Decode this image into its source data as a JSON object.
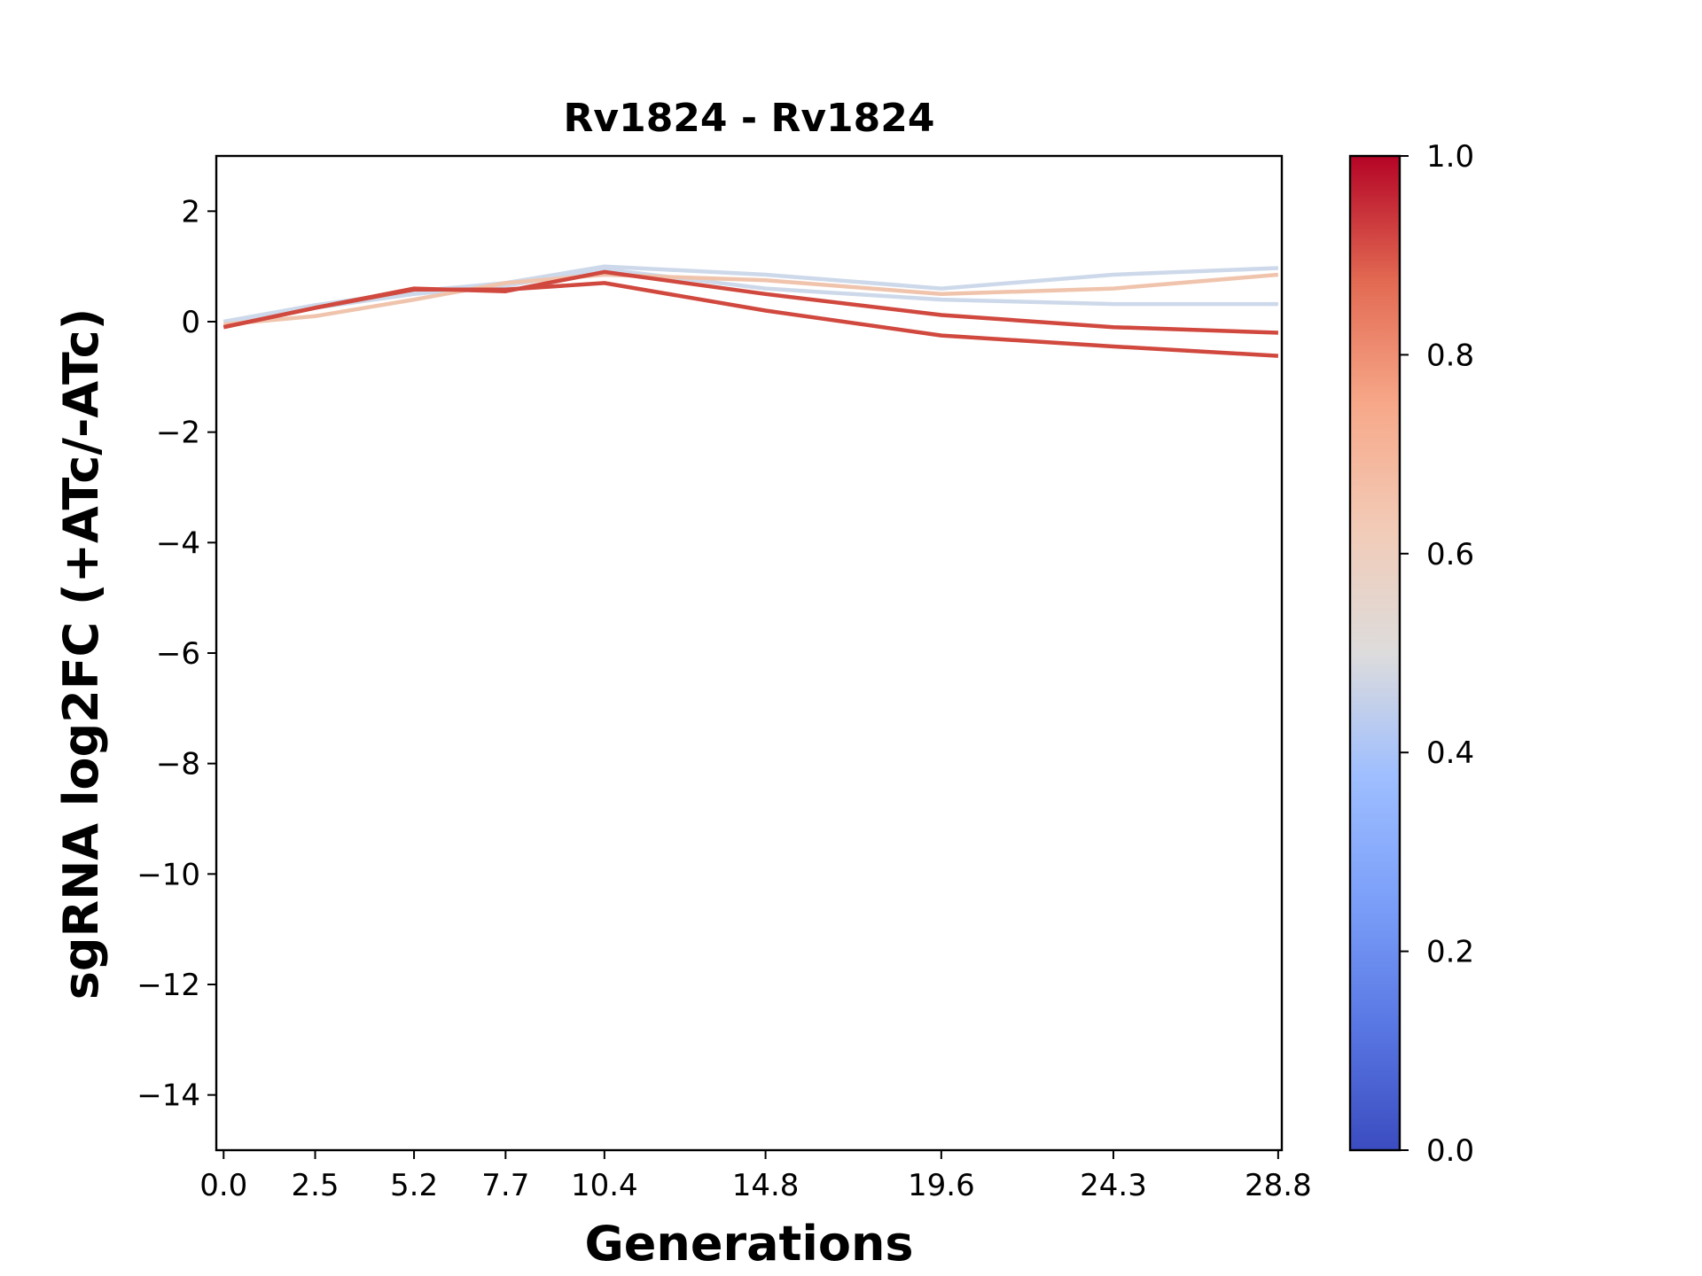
{
  "chart_data": {
    "type": "line",
    "title": "Rv1824 - Rv1824",
    "xlabel": "Generations",
    "ylabel": "sgRNA log2FC (+ATc/-ATc)",
    "x": [
      0.0,
      2.5,
      5.2,
      7.7,
      10.4,
      14.8,
      19.6,
      24.3,
      28.8
    ],
    "x_ticks": [
      "0.0",
      "2.5",
      "5.2",
      "7.7",
      "10.4",
      "14.8",
      "19.6",
      "24.3",
      "28.8"
    ],
    "xlim": [
      -0.2,
      28.9
    ],
    "ylim": [
      -15,
      3
    ],
    "y_ticks": [
      2,
      0,
      -2,
      -4,
      -6,
      -8,
      -10,
      -12,
      -14
    ],
    "y_tick_labels": [
      "2",
      "0",
      "−2",
      "−4",
      "−6",
      "−8",
      "−10",
      "−12",
      "−14"
    ],
    "colormap": "coolwarm",
    "colorbar": {
      "range": [
        0.0,
        1.0
      ],
      "ticks": [
        "1.0",
        "0.8",
        "0.6",
        "0.4",
        "0.2",
        "0.0"
      ]
    },
    "series": [
      {
        "color_value": 0.45,
        "color": "#cdd9ea",
        "values": [
          0.0,
          0.3,
          0.55,
          0.7,
          1.0,
          0.85,
          0.6,
          0.85,
          0.97
        ]
      },
      {
        "color_value": 0.45,
        "color": "#cdd9ea",
        "values": [
          0.0,
          0.25,
          0.5,
          0.65,
          0.95,
          0.6,
          0.4,
          0.32,
          0.32
        ]
      },
      {
        "color_value": 0.62,
        "color": "#f0c4ac",
        "values": [
          -0.05,
          0.1,
          0.4,
          0.7,
          0.85,
          0.75,
          0.5,
          0.6,
          0.85
        ]
      },
      {
        "color_value": 0.92,
        "color": "#d0483e",
        "values": [
          -0.1,
          0.25,
          0.6,
          0.55,
          0.9,
          0.5,
          0.12,
          -0.1,
          -0.2
        ]
      },
      {
        "color_value": 0.92,
        "color": "#d0483e",
        "values": [
          -0.1,
          0.25,
          0.58,
          0.58,
          0.7,
          0.2,
          -0.25,
          -0.45,
          -0.62
        ]
      }
    ]
  }
}
